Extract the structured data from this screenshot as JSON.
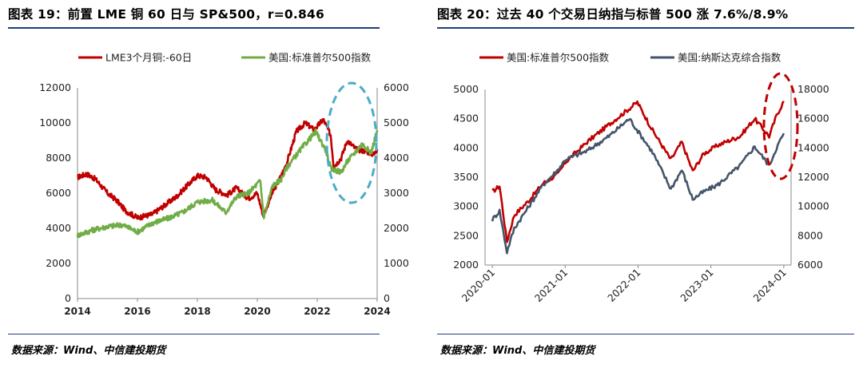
{
  "left": {
    "title": "图表 19：前置 LME 铜 60 日与 SP&500，r=0.846",
    "source": "数据来源：Wind、中信建投期货",
    "chart_data": {
      "type": "line",
      "x_ticks": [
        "2014",
        "2016",
        "2018",
        "2020",
        "2022",
        "2024"
      ],
      "xlim": [
        2014,
        2024
      ],
      "ylim_left": [
        0,
        12000
      ],
      "ylim_right": [
        0,
        6000
      ],
      "y_ticks_left": [
        "0",
        "2000",
        "4000",
        "6000",
        "8000",
        "10000",
        "12000"
      ],
      "y_ticks_right": [
        "0",
        "1000",
        "2000",
        "3000",
        "4000",
        "5000",
        "6000"
      ],
      "legend_position": "top",
      "series": [
        {
          "name": "LME3个月铜:-60日",
          "axis": "left",
          "color": "#c00000",
          "points": [
            [
              2014.0,
              6900
            ],
            [
              2014.3,
              7100
            ],
            [
              2014.6,
              6800
            ],
            [
              2015.0,
              6000
            ],
            [
              2015.3,
              5600
            ],
            [
              2015.6,
              5000
            ],
            [
              2016.0,
              4600
            ],
            [
              2016.5,
              4800
            ],
            [
              2016.9,
              5300
            ],
            [
              2017.3,
              5800
            ],
            [
              2017.7,
              6500
            ],
            [
              2018.0,
              7000
            ],
            [
              2018.3,
              6900
            ],
            [
              2018.6,
              6200
            ],
            [
              2019.0,
              5900
            ],
            [
              2019.3,
              6300
            ],
            [
              2019.7,
              5700
            ],
            [
              2020.0,
              6000
            ],
            [
              2020.2,
              4700
            ],
            [
              2020.5,
              6000
            ],
            [
              2020.8,
              7000
            ],
            [
              2021.0,
              7800
            ],
            [
              2021.3,
              9500
            ],
            [
              2021.6,
              10000
            ],
            [
              2021.9,
              9600
            ],
            [
              2022.2,
              10200
            ],
            [
              2022.45,
              9300
            ],
            [
              2022.55,
              7500
            ],
            [
              2022.8,
              8000
            ],
            [
              2023.0,
              9000
            ],
            [
              2023.3,
              8500
            ],
            [
              2023.6,
              8400
            ],
            [
              2023.9,
              8200
            ],
            [
              2024.0,
              8500
            ]
          ]
        },
        {
          "name": "美国:标准普尔500指数",
          "axis": "right",
          "color": "#70ad47",
          "points": [
            [
              2014.0,
              1800
            ],
            [
              2014.5,
              1950
            ],
            [
              2015.0,
              2050
            ],
            [
              2015.5,
              2100
            ],
            [
              2016.0,
              1900
            ],
            [
              2016.5,
              2150
            ],
            [
              2017.0,
              2280
            ],
            [
              2017.5,
              2450
            ],
            [
              2018.0,
              2750
            ],
            [
              2018.5,
              2800
            ],
            [
              2018.95,
              2450
            ],
            [
              2019.3,
              2900
            ],
            [
              2019.7,
              3000
            ],
            [
              2020.1,
              3350
            ],
            [
              2020.22,
              2300
            ],
            [
              2020.5,
              3200
            ],
            [
              2020.8,
              3400
            ],
            [
              2021.0,
              3750
            ],
            [
              2021.5,
              4300
            ],
            [
              2021.95,
              4750
            ],
            [
              2022.3,
              4200
            ],
            [
              2022.45,
              3700
            ],
            [
              2022.8,
              3600
            ],
            [
              2023.0,
              3900
            ],
            [
              2023.5,
              4400
            ],
            [
              2023.8,
              4150
            ],
            [
              2024.0,
              4800
            ]
          ]
        }
      ],
      "annotation": "dashed-ellipse"
    }
  },
  "right": {
    "title": "图表 20：过去 40 个交易日纳指与标普 500 涨 7.6%/8.9%",
    "source": "数据来源：Wind、中信建投期货",
    "chart_data": {
      "type": "line",
      "x_ticks": [
        "2020-01",
        "2021-01",
        "2022-01",
        "2023-01",
        "2024-01"
      ],
      "xlim": [
        2019.9,
        2024.1
      ],
      "ylim_left": [
        2000,
        5000
      ],
      "ylim_right": [
        6000,
        18000
      ],
      "y_ticks_left": [
        "2000",
        "2500",
        "3000",
        "3500",
        "4000",
        "4500",
        "5000"
      ],
      "y_ticks_right": [
        "6000",
        "8000",
        "10000",
        "12000",
        "14000",
        "16000",
        "18000"
      ],
      "legend_position": "top",
      "series": [
        {
          "name": "美国:标准普尔500指数",
          "axis": "left",
          "color": "#c00000",
          "points": [
            [
              2020.0,
              3250
            ],
            [
              2020.1,
              3350
            ],
            [
              2020.2,
              2400
            ],
            [
              2020.3,
              2850
            ],
            [
              2020.5,
              3100
            ],
            [
              2020.7,
              3400
            ],
            [
              2020.9,
              3550
            ],
            [
              2021.0,
              3750
            ],
            [
              2021.3,
              4100
            ],
            [
              2021.6,
              4400
            ],
            [
              2021.99,
              4780
            ],
            [
              2022.2,
              4300
            ],
            [
              2022.45,
              3800
            ],
            [
              2022.6,
              4100
            ],
            [
              2022.75,
              3600
            ],
            [
              2022.9,
              3900
            ],
            [
              2023.1,
              4050
            ],
            [
              2023.4,
              4200
            ],
            [
              2023.6,
              4500
            ],
            [
              2023.8,
              4200
            ],
            [
              2023.9,
              4550
            ],
            [
              2024.0,
              4800
            ]
          ]
        },
        {
          "name": "美国:纳斯达克综合指数",
          "axis": "right",
          "color": "#44546a",
          "points": [
            [
              2020.0,
              9100
            ],
            [
              2020.1,
              9700
            ],
            [
              2020.2,
              6900
            ],
            [
              2020.3,
              8500
            ],
            [
              2020.5,
              10000
            ],
            [
              2020.7,
              11500
            ],
            [
              2020.9,
              12500
            ],
            [
              2021.0,
              13200
            ],
            [
              2021.3,
              13800
            ],
            [
              2021.6,
              14800
            ],
            [
              2021.88,
              16000
            ],
            [
              2022.2,
              13700
            ],
            [
              2022.45,
              11200
            ],
            [
              2022.6,
              12500
            ],
            [
              2022.75,
              10500
            ],
            [
              2022.9,
              11000
            ],
            [
              2023.1,
              11500
            ],
            [
              2023.4,
              12800
            ],
            [
              2023.6,
              14100
            ],
            [
              2023.8,
              12800
            ],
            [
              2023.9,
              14000
            ],
            [
              2024.0,
              15000
            ]
          ]
        }
      ],
      "annotation": "dashed-ellipse"
    }
  }
}
